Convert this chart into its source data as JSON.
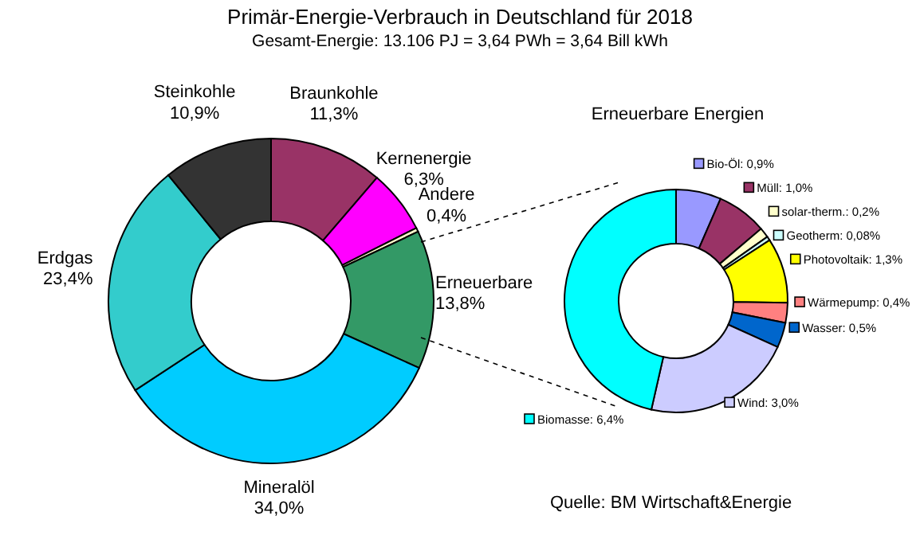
{
  "chart_data": [
    {
      "type": "donut",
      "title": "Primär-Energie-Verbrauch in Deutschland für 2018",
      "subtitle": "Gesamt-Energie: 13.106 PJ = 3,64 PWh = 3,64 Bill kWh",
      "categories": [
        "Braunkohle",
        "Kernenergie",
        "Andere",
        "Erneuerbare",
        "Mineralöl",
        "Erdgas",
        "Steinkohle"
      ],
      "values": [
        11.3,
        6.3,
        0.4,
        13.8,
        34.0,
        23.4,
        10.9
      ],
      "value_labels": [
        "11,3%",
        "6,3%",
        "0,4%",
        "13,8%",
        "34,0%",
        "23,4%",
        "10,9%"
      ],
      "colors": [
        "#993366",
        "#ff00ff",
        "#ffffcc",
        "#339966",
        "#00ccff",
        "#33cccc",
        "#333333"
      ]
    },
    {
      "type": "donut",
      "title": "Erneuerbare Energien",
      "annotations": [
        "Quelle: BM Wirtschaft&Energie"
      ],
      "legend": "right",
      "categories": [
        "Bio-Öl",
        "Müll",
        "solar-therm.",
        "Geotherm",
        "Photovoltaik",
        "Wärmepump",
        "Wasser",
        "Wind",
        "Biomasse"
      ],
      "values": [
        0.9,
        1.0,
        0.2,
        0.08,
        1.3,
        0.4,
        0.5,
        3.0,
        6.4
      ],
      "value_labels": [
        "0,9%",
        "1,0%",
        "0,2%",
        "0,08%",
        "1,3%",
        "0,4%",
        "0,5%",
        "3,0%",
        "6,4%"
      ],
      "colors": [
        "#9999ff",
        "#993366",
        "#ffffcc",
        "#ccffff",
        "#ffff00",
        "#ff8080",
        "#0066cc",
        "#ccccff",
        "#00ffff"
      ]
    }
  ]
}
